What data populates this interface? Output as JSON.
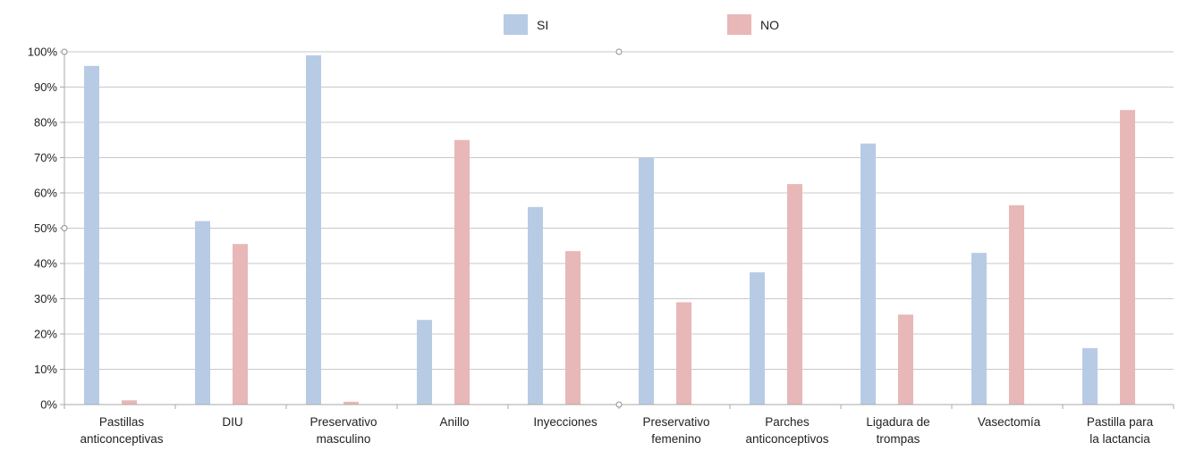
{
  "chart_data": {
    "type": "bar",
    "title": "",
    "xlabel": "",
    "ylabel": "",
    "ylim": [
      0,
      1
    ],
    "yticks": [
      "0%",
      "10%",
      "20%",
      "30%",
      "40%",
      "50%",
      "60%",
      "70%",
      "80%",
      "90%",
      "100%"
    ],
    "grid": true,
    "legend_position": "top-center",
    "categories": [
      [
        "Pastillas",
        "anticonceptivas"
      ],
      [
        "DIU"
      ],
      [
        "Preservativo",
        "masculino"
      ],
      [
        "Anillo"
      ],
      [
        "Inyecciones"
      ],
      [
        "Preservativo",
        "femenino"
      ],
      [
        "Parches",
        "anticonceptivos"
      ],
      [
        "Ligadura de",
        "trompas"
      ],
      [
        "Vasectomía"
      ],
      [
        "Pastilla para",
        "la lactancia"
      ]
    ],
    "series": [
      {
        "name": "SI",
        "color": "#b7cbe5",
        "values": [
          0.96,
          0.52,
          0.99,
          0.24,
          0.56,
          0.7,
          0.375,
          0.74,
          0.43,
          0.16
        ]
      },
      {
        "name": "NO",
        "color": "#e8b7b7",
        "values": [
          0.012,
          0.455,
          0.008,
          0.75,
          0.435,
          0.29,
          0.625,
          0.255,
          0.565,
          0.835
        ]
      }
    ]
  }
}
